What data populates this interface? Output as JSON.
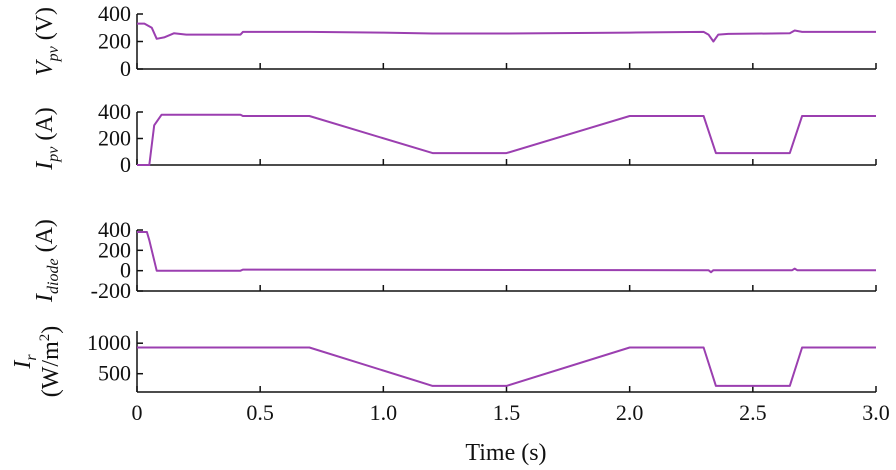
{
  "chart_data": [
    {
      "type": "line",
      "ylabel": {
        "symbol": "V",
        "subscript": "pv",
        "unit": " (V)"
      },
      "ylim": [
        0,
        400
      ],
      "yticks": [
        "0",
        "200",
        "400"
      ],
      "ytick_values": [
        0,
        200,
        400
      ],
      "color": "#9b3fb0",
      "series": [
        {
          "x": [
            0,
            0.03,
            0.06,
            0.08,
            0.11,
            0.15,
            0.2,
            0.3,
            0.42,
            0.43,
            0.7,
            1.0,
            1.2,
            1.5,
            2.0,
            2.3,
            2.32,
            2.34,
            2.36,
            2.4,
            2.65,
            2.67,
            2.7,
            3.0
          ],
          "y": [
            330,
            330,
            300,
            220,
            230,
            260,
            250,
            250,
            250,
            270,
            270,
            265,
            258,
            258,
            265,
            270,
            250,
            200,
            250,
            255,
            260,
            280,
            270,
            270
          ]
        }
      ]
    },
    {
      "type": "line",
      "ylabel": {
        "symbol": "I",
        "subscript": "pv",
        "unit": " (A)"
      },
      "ylim": [
        0,
        400
      ],
      "yticks": [
        "0",
        "200",
        "400"
      ],
      "ytick_values": [
        0,
        200,
        400
      ],
      "color": "#9b3fb0",
      "series": [
        {
          "x": [
            0,
            0.05,
            0.07,
            0.1,
            0.42,
            0.43,
            0.7,
            1.2,
            1.5,
            2.0,
            2.3,
            2.35,
            2.65,
            2.7,
            3.0
          ],
          "y": [
            0,
            0,
            300,
            380,
            380,
            370,
            370,
            90,
            90,
            370,
            370,
            90,
            90,
            370,
            370
          ]
        }
      ]
    },
    {
      "type": "line",
      "ylabel": {
        "symbol": "I",
        "subscript": "diode",
        "unit": " (A)"
      },
      "ylim": [
        -200,
        400
      ],
      "yticks": [
        "-200",
        "0",
        "200",
        "400"
      ],
      "ytick_values": [
        -200,
        0,
        200,
        400
      ],
      "color": "#9b3fb0",
      "series": [
        {
          "x": [
            0,
            0.04,
            0.05,
            0.08,
            0.42,
            0.43,
            2.32,
            2.33,
            2.34,
            2.66,
            2.67,
            2.68,
            3.0
          ],
          "y": [
            380,
            380,
            300,
            0,
            0,
            10,
            5,
            -15,
            5,
            5,
            20,
            5,
            5
          ]
        }
      ]
    },
    {
      "type": "line",
      "ylabel": {
        "symbol": "I",
        "subscript": "r",
        "unit": "(W/m",
        "unit_sup": "2",
        "unit_end": ")"
      },
      "ylim": [
        200,
        1200
      ],
      "yticks": [
        "500",
        "1000"
      ],
      "ytick_values": [
        500,
        1000
      ],
      "color": "#9b3fb0",
      "series": [
        {
          "x": [
            0,
            0.7,
            1.2,
            1.5,
            2.0,
            2.3,
            2.35,
            2.65,
            2.7,
            3.0
          ],
          "y": [
            930,
            930,
            300,
            300,
            930,
            930,
            300,
            300,
            930,
            930
          ]
        }
      ]
    }
  ],
  "x_axis": {
    "xlabel": "Time (s)",
    "xlim": [
      0,
      3.0
    ],
    "xticks": [
      "0",
      "0.5",
      "1.0",
      "1.5",
      "2.0",
      "2.5",
      "3.0"
    ],
    "xtick_values": [
      0,
      0.5,
      1.0,
      1.5,
      2.0,
      2.5,
      3.0
    ]
  }
}
